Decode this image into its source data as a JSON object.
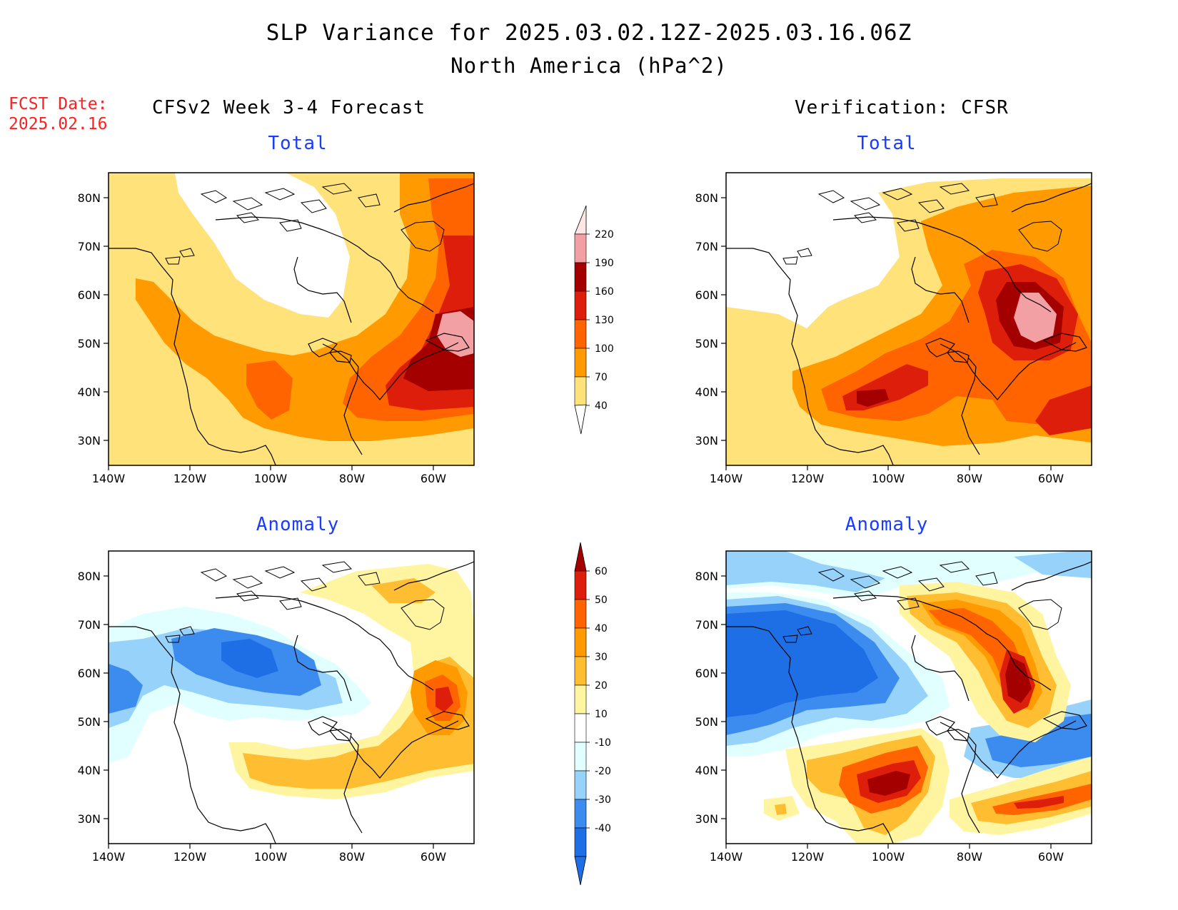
{
  "header": {
    "title": "SLP Variance for 2025.03.02.12Z-2025.03.16.06Z",
    "subtitle": "North America (hPa^2)",
    "fcst_label": "FCST Date:",
    "fcst_date": "2025.02.16"
  },
  "columns": {
    "left_title": "CFSv2 Week 3-4 Forecast",
    "right_title": "Verification: CFSR"
  },
  "panels": {
    "total_label": "Total",
    "anomaly_label": "Anomaly"
  },
  "axes": {
    "lat_labels": [
      "80N",
      "70N",
      "60N",
      "50N",
      "40N",
      "30N"
    ],
    "lon_labels": [
      "140W",
      "120W",
      "100W",
      "80W",
      "60W"
    ]
  },
  "colorbar_total": {
    "levels": [
      "220",
      "190",
      "160",
      "130",
      "100",
      "70",
      "40"
    ],
    "colors": [
      "#ffe6e6",
      "#f2a0a4",
      "#a50000",
      "#dc1e0a",
      "#ff6400",
      "#ff9b00",
      "#ffe37a"
    ]
  },
  "colorbar_anomaly": {
    "levels": [
      "60",
      "50",
      "40",
      "30",
      "20",
      "10",
      "-10",
      "-20",
      "-30",
      "-40"
    ],
    "colors": [
      "#a50000",
      "#dc1e0a",
      "#ff6400",
      "#ff9b00",
      "#ffbe32",
      "#fff5a0",
      "#ffffff",
      "#e1ffff",
      "#96d2fa",
      "#3c8cf0",
      "#1e6ee6"
    ]
  }
}
